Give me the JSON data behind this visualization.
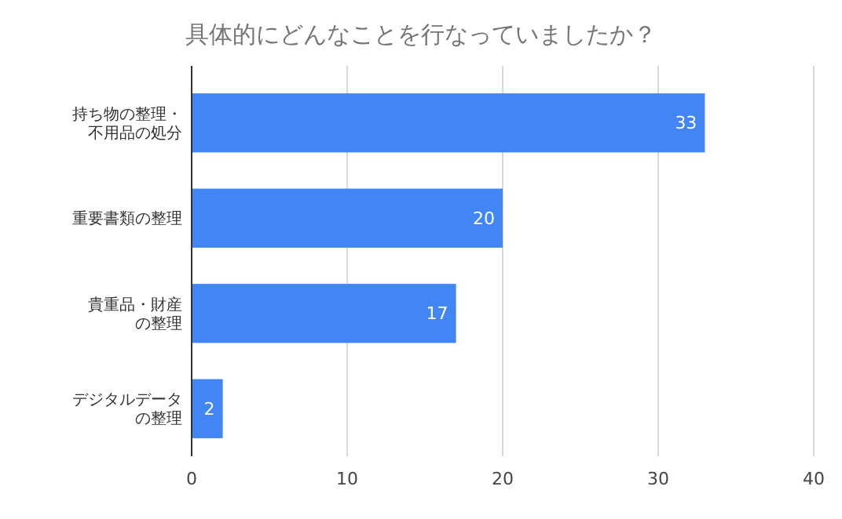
{
  "chart_data": {
    "type": "bar",
    "orientation": "horizontal",
    "title": "具体的にどんなことを行なっていましたか？",
    "categories": [
      "持ち物の整理・不用品の処分",
      "重要書類の整理",
      "貴重品・財産の整理",
      "デジタルデータの整理"
    ],
    "values": [
      33,
      20,
      17,
      2
    ],
    "color": "#4285f4",
    "xlim": [
      0,
      40
    ],
    "xticks": [
      0,
      10,
      20,
      30,
      40
    ],
    "grid": "x",
    "data_labels": true
  }
}
